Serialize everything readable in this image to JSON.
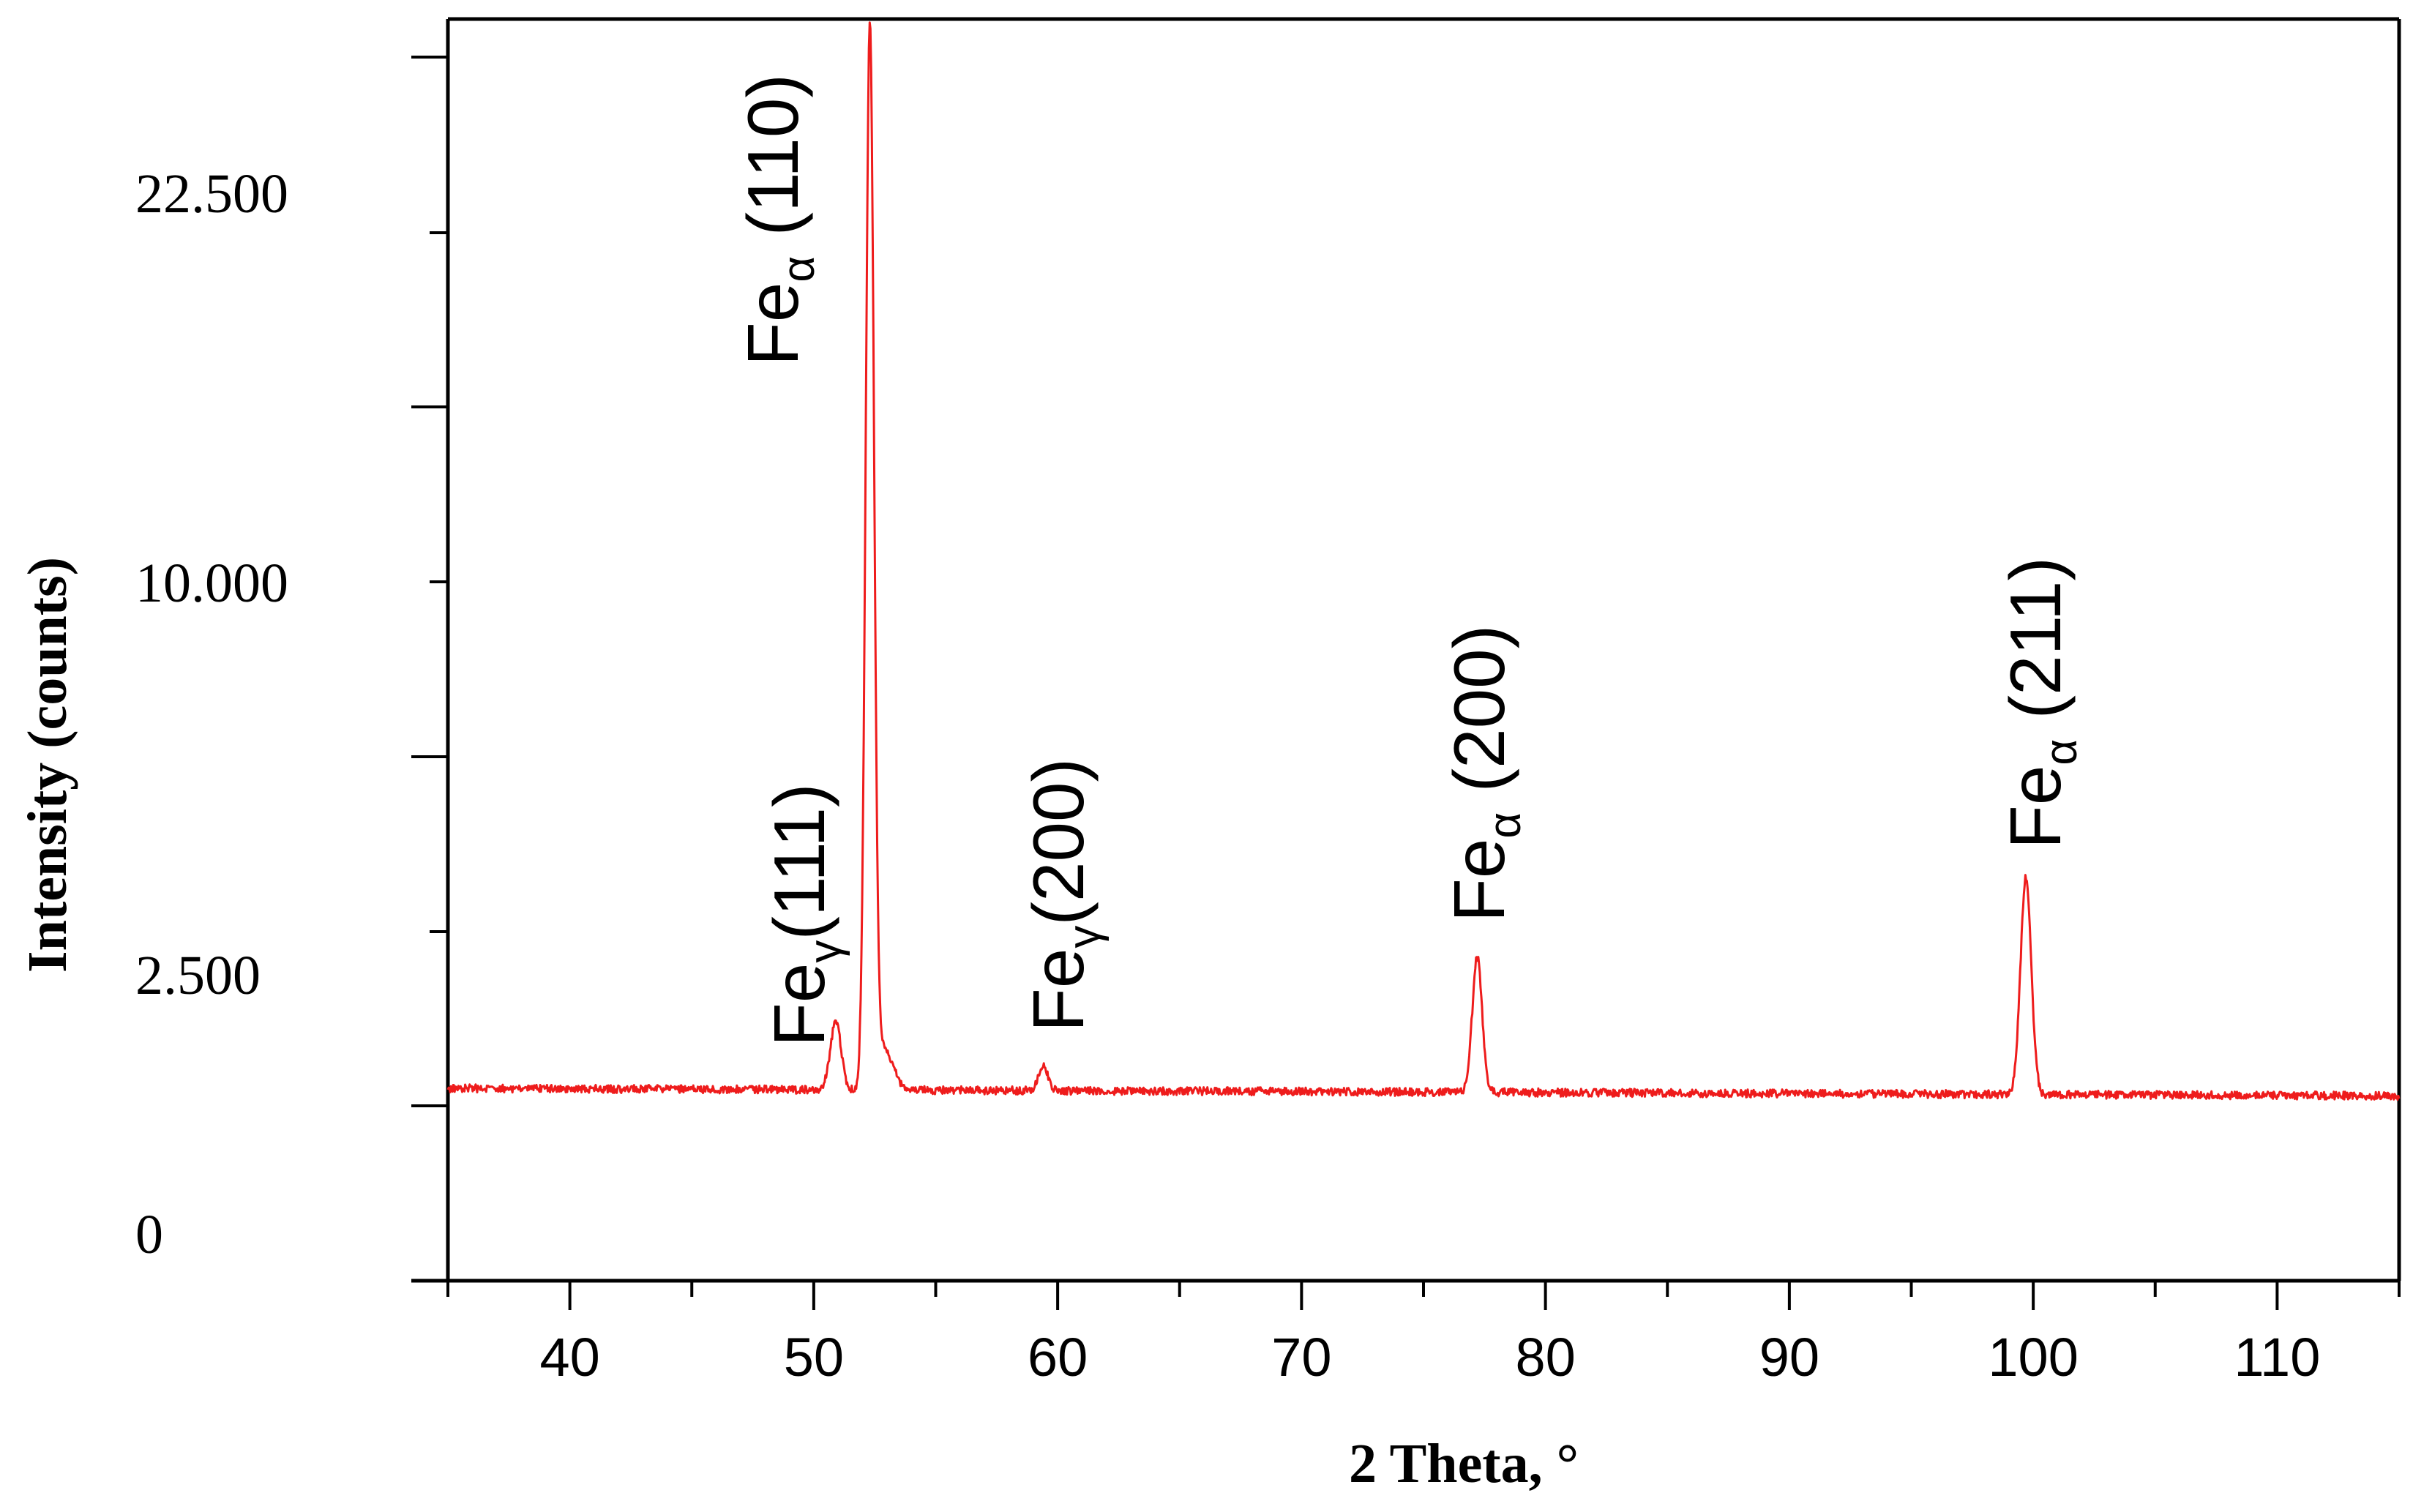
{
  "chart_data": {
    "type": "line",
    "title": "",
    "xlabel": "2 Theta, °",
    "ylabel": "Intensity (counts)",
    "xlim": [
      35,
      115
    ],
    "x_ticks": [
      "40",
      "50",
      "60",
      "70",
      "80",
      "90",
      "100",
      "110"
    ],
    "y_tick_labels": [
      "22.500",
      "10.000",
      "2.500",
      "0"
    ],
    "grid": false,
    "legend": "none",
    "line_color": "#ee1c1c",
    "baseline_intensity": 1450,
    "series": [
      {
        "peaks": [
          {
            "two_theta": 50.9,
            "label_base": "Fe",
            "label_sub": "γ",
            "label_hkl": "(111)"
          },
          {
            "two_theta": 52.3,
            "label_base": "Fe",
            "label_sub": "α",
            "label_hkl": " (110)"
          },
          {
            "two_theta": 59.4,
            "label_base": "Fe",
            "label_sub": "γ",
            "label_hkl": "(200)"
          },
          {
            "two_theta": 77.2,
            "label_base": "Fe",
            "label_sub": "α",
            "label_hkl": " (200)"
          },
          {
            "two_theta": 99.7,
            "label_base": "Fe",
            "label_sub": "α",
            "label_hkl": " (211)"
          }
        ]
      }
    ]
  }
}
